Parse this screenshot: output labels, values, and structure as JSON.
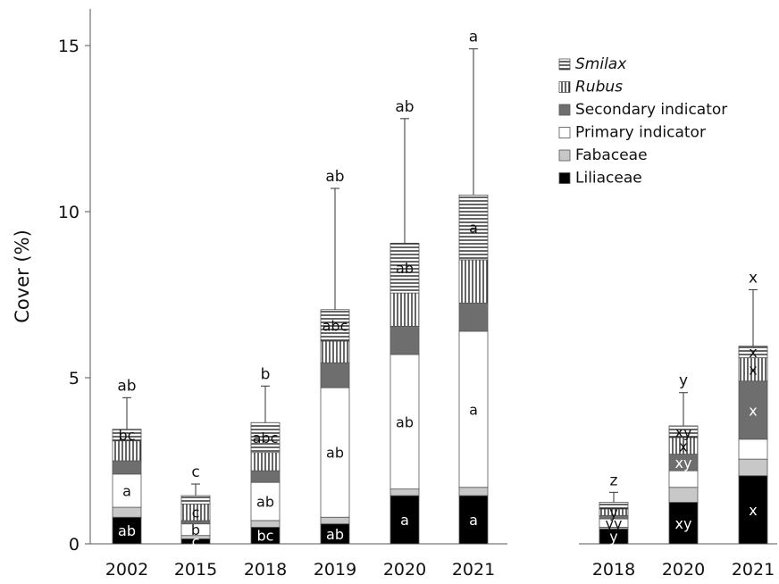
{
  "chart_data": {
    "type": "bar",
    "stacked": true,
    "ylabel": "Cover (%)",
    "ylim": [
      0,
      16
    ],
    "yticks": [
      0,
      5,
      10,
      15
    ],
    "grid": false,
    "legend_position": "top-right",
    "categories": [
      "2002",
      "2015",
      "2018",
      "2019",
      "2020",
      "2021",
      "2018",
      "2020",
      "2021"
    ],
    "groups": [
      {
        "categories": [
          "2002",
          "2015",
          "2018",
          "2019",
          "2020",
          "2021"
        ]
      },
      {
        "categories": [
          "2018",
          "2020",
          "2021"
        ]
      }
    ],
    "series": [
      {
        "name": "Liliaceae",
        "pattern": "solid-black",
        "color": "#000000",
        "values": [
          0.8,
          0.15,
          0.5,
          0.6,
          1.45,
          1.45,
          0.45,
          1.25,
          2.05
        ]
      },
      {
        "name": "Fabaceae",
        "pattern": "solid-lightgray",
        "color": "#c8c8c8",
        "values": [
          0.3,
          0.1,
          0.2,
          0.2,
          0.2,
          0.25,
          0.05,
          0.45,
          0.5
        ]
      },
      {
        "name": "Primary indicator",
        "pattern": "white",
        "color": "#ffffff",
        "values": [
          1.0,
          0.35,
          1.15,
          3.9,
          4.05,
          4.7,
          0.25,
          0.5,
          0.6
        ]
      },
      {
        "name": "Secondary indicator",
        "pattern": "solid-darkgray",
        "color": "#6e6e6e",
        "values": [
          0.4,
          0.1,
          0.35,
          0.75,
          0.85,
          0.85,
          0.1,
          0.5,
          1.75
        ]
      },
      {
        "name": "Rubus",
        "italic": true,
        "pattern": "vertical-lines",
        "values": [
          0.6,
          0.5,
          0.55,
          0.65,
          1.0,
          1.3,
          0.2,
          0.5,
          0.7
        ]
      },
      {
        "name": "Smilax",
        "italic": true,
        "pattern": "horizontal-lines",
        "values": [
          0.35,
          0.25,
          0.9,
          0.95,
          1.5,
          1.95,
          0.2,
          0.35,
          0.35
        ]
      }
    ],
    "error_bar_top": [
      4.4,
      1.8,
      4.75,
      10.7,
      12.8,
      14.9,
      1.55,
      4.55,
      7.65
    ],
    "significance_labels": [
      "ab",
      "c",
      "b",
      "ab",
      "ab",
      "a",
      "z",
      "y",
      "x"
    ],
    "segment_labels": [
      {
        "bar": 0,
        "series": 0,
        "text": "ab",
        "color": "#ffffff"
      },
      {
        "bar": 0,
        "series": 2,
        "text": "a",
        "color": "#111111"
      },
      {
        "bar": 0,
        "series": 5,
        "text": "bc",
        "color": "#111111"
      },
      {
        "bar": 1,
        "series": 0,
        "text": "c",
        "color": "#ffffff"
      },
      {
        "bar": 1,
        "series": 2,
        "text": "b",
        "color": "#111111"
      },
      {
        "bar": 1,
        "series": 4,
        "text": "c",
        "color": "#111111"
      },
      {
        "bar": 2,
        "series": 0,
        "text": "bc",
        "color": "#ffffff"
      },
      {
        "bar": 2,
        "series": 2,
        "text": "ab",
        "color": "#111111"
      },
      {
        "bar": 2,
        "series": 5,
        "text": "abc",
        "color": "#111111"
      },
      {
        "bar": 3,
        "series": 0,
        "text": "ab",
        "color": "#ffffff"
      },
      {
        "bar": 3,
        "series": 2,
        "text": "ab",
        "color": "#111111"
      },
      {
        "bar": 3,
        "series": 5,
        "text": "abc",
        "color": "#111111"
      },
      {
        "bar": 4,
        "series": 0,
        "text": "a",
        "color": "#ffffff"
      },
      {
        "bar": 4,
        "series": 2,
        "text": "ab",
        "color": "#111111"
      },
      {
        "bar": 4,
        "series": 5,
        "text": "ab",
        "color": "#111111"
      },
      {
        "bar": 5,
        "series": 0,
        "text": "a",
        "color": "#ffffff"
      },
      {
        "bar": 5,
        "series": 2,
        "text": "a",
        "color": "#111111"
      },
      {
        "bar": 5,
        "series": 5,
        "text": "a",
        "color": "#111111"
      },
      {
        "bar": 6,
        "series": 0,
        "text": "y",
        "color": "#ffffff"
      },
      {
        "bar": 6,
        "series": 2,
        "text": "yy",
        "color": "#111111"
      },
      {
        "bar": 6,
        "series": 4,
        "text": "y",
        "color": "#111111"
      },
      {
        "bar": 7,
        "series": 0,
        "text": "xy",
        "color": "#ffffff"
      },
      {
        "bar": 7,
        "series": 3,
        "text": "xy",
        "color": "#ffffff"
      },
      {
        "bar": 7,
        "series": 4,
        "text": "x",
        "color": "#111111"
      },
      {
        "bar": 7,
        "series": 5,
        "text": "xy",
        "color": "#111111"
      },
      {
        "bar": 8,
        "series": 0,
        "text": "x",
        "color": "#ffffff"
      },
      {
        "bar": 8,
        "series": 3,
        "text": "x",
        "color": "#ffffff"
      },
      {
        "bar": 8,
        "series": 4,
        "text": "x",
        "color": "#111111"
      },
      {
        "bar": 8,
        "series": 5,
        "text": "x",
        "color": "#111111"
      }
    ]
  }
}
